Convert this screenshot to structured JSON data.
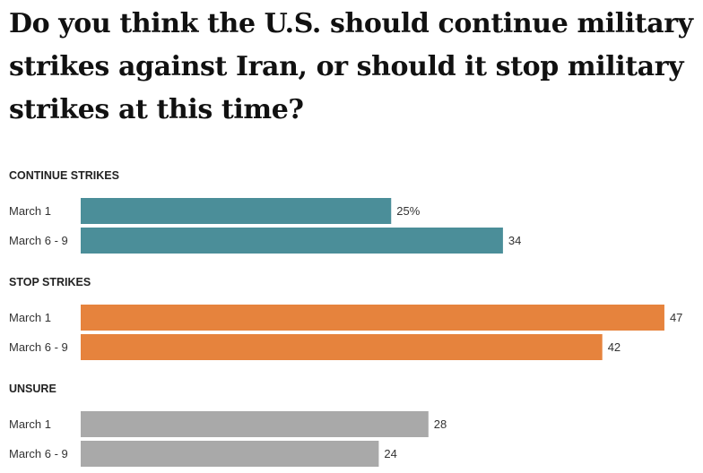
{
  "chart_data": {
    "type": "bar",
    "orientation": "horizontal",
    "title": "Do you think the U.S. should continue military strikes against Iran, or should it stop military strikes at this time?",
    "categories": [
      "March 1",
      "March 6 - 9"
    ],
    "value_suffix_first": "%",
    "xlim": [
      0,
      48
    ],
    "groups": [
      {
        "name": "CONTINUE STRIKES",
        "color": "#4b8e99",
        "values": [
          25,
          34
        ]
      },
      {
        "name": "STOP STRIKES",
        "color": "#e6833d",
        "values": [
          47,
          42
        ]
      },
      {
        "name": "UNSURE",
        "color": "#a9a9a9",
        "values": [
          28,
          24
        ]
      }
    ]
  }
}
